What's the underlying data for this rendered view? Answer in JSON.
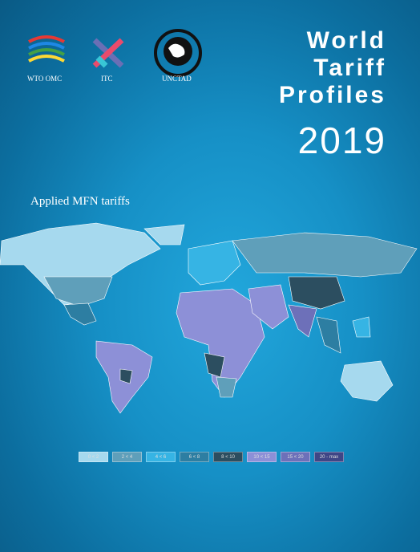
{
  "logos": {
    "wto": "WTO OMC",
    "itc": "ITC",
    "unctad": "UNCTAD"
  },
  "title": [
    "World",
    "Tariff",
    "Profiles"
  ],
  "year": "2019",
  "subtitle": "Applied MFN tariffs",
  "legend": [
    {
      "label": "0 < 2",
      "color": "#a6d9ee"
    },
    {
      "label": "2 < 4",
      "color": "#5f9fba"
    },
    {
      "label": "4 < 6",
      "color": "#36b4e4"
    },
    {
      "label": "6 < 8",
      "color": "#2d7ea2"
    },
    {
      "label": "8 < 10",
      "color": "#2c4e60"
    },
    {
      "label": "10 < 15",
      "color": "#8d90d7"
    },
    {
      "label": "15 < 20",
      "color": "#6d70b9"
    },
    {
      "label": "20 - max",
      "color": "#3f4686"
    }
  ]
}
